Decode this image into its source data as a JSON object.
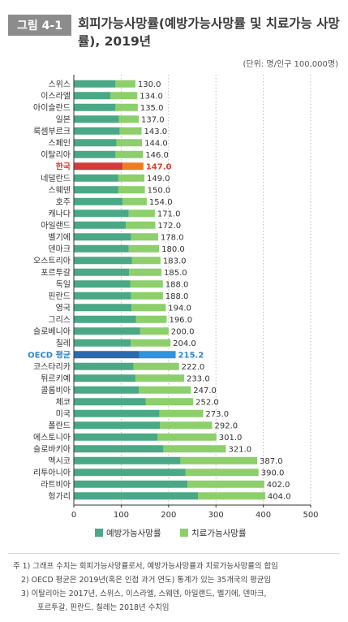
{
  "figure": {
    "label": "그림 4-1",
    "title": "회피가능사망률(예방가능사망률 및 치료가능 사망률), 2019년",
    "unit": "(단위: 명/인구 100,000명)"
  },
  "chart_data": {
    "type": "bar",
    "orientation": "horizontal",
    "stacked": true,
    "categories": [
      "스위스",
      "이스라엘",
      "아이슬란드",
      "일본",
      "룩셈부르크",
      "스페인",
      "이탈리아",
      "한국",
      "네덜란드",
      "스웨덴",
      "호주",
      "캐나다",
      "아일랜드",
      "벨기에",
      "덴마크",
      "오스트리아",
      "포르투갈",
      "독일",
      "핀란드",
      "영국",
      "그리스",
      "슬로베니아",
      "칠레",
      "OECD 평균",
      "코스타리카",
      "튀르키예",
      "콜롬비아",
      "체코",
      "미국",
      "폴란드",
      "에스토니아",
      "슬로바키아",
      "멕시코",
      "리투아니아",
      "라트비아",
      "헝가리"
    ],
    "series": [
      {
        "name": "예방가능사망률",
        "values": [
          88,
          77,
          88,
          95,
          97,
          90,
          88,
          103,
          94,
          94,
          103,
          116,
          110,
          121,
          116,
          123,
          117,
          119,
          121,
          122,
          131,
          140,
          120,
          138,
          126,
          130,
          137,
          152,
          181,
          182,
          177,
          189,
          225,
          236,
          240,
          262
        ]
      },
      {
        "name": "치료가능사망률",
        "values": [
          42,
          57,
          47,
          42,
          46,
          54,
          58,
          44,
          55,
          56,
          51,
          55,
          62,
          57,
          64,
          60,
          68,
          69,
          67,
          72,
          65,
          60,
          84,
          77,
          96,
          103,
          110,
          100,
          92,
          110,
          124,
          132,
          162,
          154,
          162,
          142
        ]
      }
    ],
    "totals": [
      "130.0",
      "134.0",
      "135.0",
      "137.0",
      "143.0",
      "144.0",
      "146.0",
      "147.0",
      "149.0",
      "150.0",
      "154.0",
      "171.0",
      "172.0",
      "178.0",
      "180.0",
      "183.0",
      "185.0",
      "188.0",
      "188.0",
      "194.0",
      "196.0",
      "200.0",
      "204.0",
      "215.2",
      "222.0",
      "233.0",
      "247.0",
      "252.0",
      "273.0",
      "292.0",
      "301.0",
      "321.0",
      "387.0",
      "390.0",
      "402.0",
      "404.0"
    ],
    "highlights": {
      "한국": "korea",
      "OECD 평균": "oecd"
    },
    "xlim": [
      0,
      500
    ],
    "xticks": [
      "0",
      "100",
      "200",
      "300",
      "400",
      "500"
    ],
    "grid": "vertical-dotted",
    "legend_position": "bottom",
    "colors": {
      "prevent": "#4aa886",
      "treat": "#8ccf6b",
      "korea_prevent": "#d33b3b",
      "korea_treat": "#f07c20",
      "korea_text": "#e23a2e",
      "oecd_prevent": "#2a6aae",
      "oecd_treat": "#2e94dd",
      "oecd_text": "#2e86cf",
      "grid": "#bdbdbd",
      "axis": "#333333"
    }
  },
  "legend": [
    {
      "label": "예방가능사망률"
    },
    {
      "label": "치료가능사망률"
    }
  ],
  "notes": [
    "주 1) 그래프 수치는 회피가능사망률로서, 예방가능사망률과 치료가능사망률의 합임",
    "2) OECD 평균은 2019년(혹은 인접 과거 연도) 통계가 있는 35개국의 평균임",
    "3) 이탈리아는 2017년, 스위스, 이스라엘, 스웨덴, 아일랜드, 벨기에, 덴마크,",
    "포르투갈, 핀란드, 칠레는 2018년 수치임"
  ]
}
